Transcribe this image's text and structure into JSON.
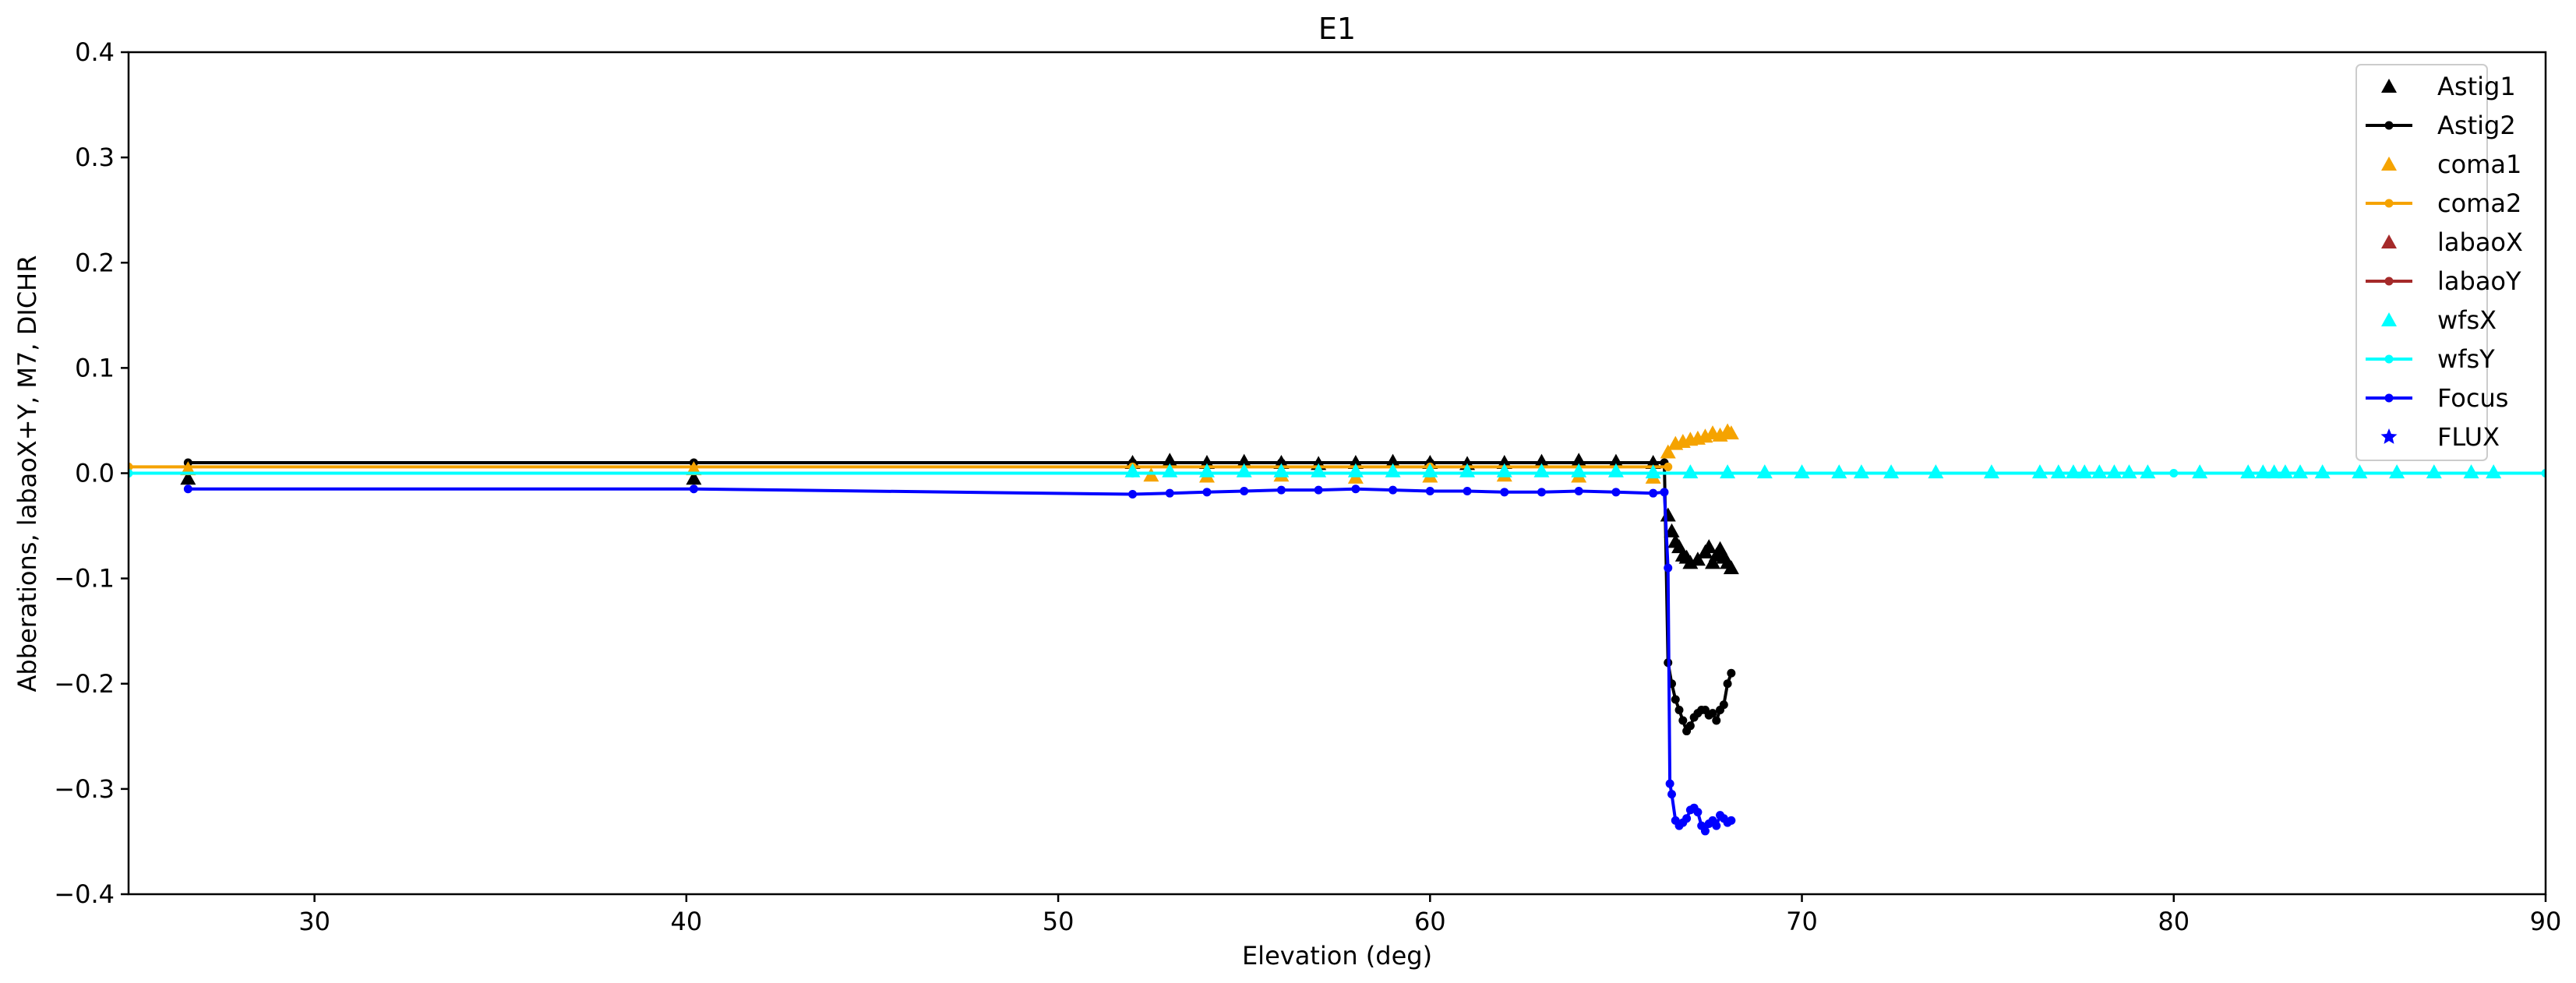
{
  "chart_data": {
    "type": "scatter",
    "title": "E1",
    "xlabel": "Elevation (deg)",
    "ylabel": "Abberations, labaoX+Y, M7, DICHR",
    "xlim": [
      25,
      90
    ],
    "ylim": [
      -0.4,
      0.4
    ],
    "xticks": [
      30,
      40,
      50,
      60,
      70,
      80,
      90
    ],
    "yticks": [
      -0.4,
      -0.3,
      -0.2,
      -0.1,
      0.0,
      0.1,
      0.2,
      0.3,
      0.4
    ],
    "ytick_labels": [
      "−0.4",
      "−0.3",
      "−0.2",
      "−0.1",
      "0.0",
      "0.1",
      "0.2",
      "0.3",
      "0.4"
    ],
    "grid": false,
    "legend_position": "top-right",
    "series": [
      {
        "name": "Astig1",
        "color": "#000000",
        "marker": "triangle",
        "line": false,
        "x": [
          26.6,
          40.2,
          52.0,
          53.0,
          54.0,
          55.0,
          56.0,
          57.0,
          58.0,
          59.0,
          60.0,
          61.0,
          62.0,
          63.0,
          64.0,
          65.0,
          66.0,
          66.4,
          66.5,
          66.6,
          66.7,
          66.8,
          66.9,
          67.0,
          67.2,
          67.4,
          67.5,
          67.6,
          67.7,
          67.8,
          67.9,
          68.0,
          68.1
        ],
        "y": [
          -0.005,
          -0.005,
          0.01,
          0.012,
          0.01,
          0.011,
          0.01,
          0.009,
          0.01,
          0.011,
          0.01,
          0.009,
          0.01,
          0.011,
          0.012,
          0.011,
          0.01,
          -0.04,
          -0.055,
          -0.065,
          -0.07,
          -0.078,
          -0.08,
          -0.085,
          -0.082,
          -0.075,
          -0.07,
          -0.085,
          -0.078,
          -0.072,
          -0.08,
          -0.085,
          -0.09
        ]
      },
      {
        "name": "Astig2",
        "color": "#000000",
        "marker": "dot",
        "line": true,
        "x": [
          26.6,
          40.2,
          52.0,
          56.0,
          60.0,
          64.0,
          66.3,
          66.4,
          66.5,
          66.6,
          66.7,
          66.8,
          66.9,
          67.0,
          67.1,
          67.2,
          67.3,
          67.4,
          67.5,
          67.6,
          67.7,
          67.8,
          67.9,
          68.0,
          68.1
        ],
        "y": [
          0.01,
          0.01,
          0.01,
          0.01,
          0.01,
          0.01,
          0.01,
          -0.18,
          -0.2,
          -0.215,
          -0.225,
          -0.235,
          -0.245,
          -0.24,
          -0.232,
          -0.228,
          -0.225,
          -0.225,
          -0.23,
          -0.228,
          -0.235,
          -0.225,
          -0.22,
          -0.2,
          -0.19
        ]
      },
      {
        "name": "coma1",
        "color": "#f5a300",
        "marker": "triangle",
        "line": false,
        "x": [
          26.6,
          40.2,
          52.5,
          54.0,
          56.0,
          58.0,
          60.0,
          62.0,
          64.0,
          66.0,
          66.4,
          66.6,
          66.8,
          67.0,
          67.2,
          67.4,
          67.6,
          67.8,
          68.0,
          68.1
        ],
        "y": [
          0.004,
          0.004,
          -0.002,
          -0.003,
          -0.002,
          -0.004,
          -0.003,
          -0.002,
          -0.003,
          -0.004,
          0.02,
          0.028,
          0.03,
          0.032,
          0.033,
          0.035,
          0.038,
          0.036,
          0.04,
          0.038
        ]
      },
      {
        "name": "coma2",
        "color": "#f5a300",
        "marker": "dot",
        "line": true,
        "x": [
          25,
          52.0,
          60.0,
          66.4
        ],
        "y": [
          0.006,
          0.006,
          0.006,
          0.006
        ]
      },
      {
        "name": "labaoX",
        "color": "#a52a2a",
        "marker": "triangle",
        "line": false,
        "x": [],
        "y": []
      },
      {
        "name": "labaoY",
        "color": "#a52a2a",
        "marker": "dot",
        "line": true,
        "x": [],
        "y": []
      },
      {
        "name": "wfsX",
        "color": "#00ffff",
        "marker": "triangle",
        "line": false,
        "x": [
          52.0,
          53.0,
          54.0,
          55.0,
          56.0,
          57.0,
          58.0,
          59.0,
          60.0,
          61.0,
          62.0,
          63.0,
          64.0,
          65.0,
          66.0,
          67.0,
          68.0,
          69.0,
          70.0,
          71.0,
          71.6,
          72.4,
          73.6,
          75.1,
          76.4,
          76.9,
          77.3,
          77.6,
          78.0,
          78.4,
          78.8,
          79.3,
          80.7,
          82.0,
          82.4,
          82.7,
          83.0,
          83.4,
          84.0,
          85.0,
          86.0,
          87.0,
          88.0,
          88.6
        ],
        "y": [
          0.002,
          0.002,
          0.002,
          0.002,
          0.002,
          0.002,
          0.002,
          0.002,
          0.002,
          0.002,
          0.002,
          0.002,
          0.002,
          0.002,
          0.001,
          0.001,
          0.001,
          0.001,
          0.001,
          0.001,
          0.001,
          0.001,
          0.001,
          0.001,
          0.001,
          0.001,
          0.001,
          0.001,
          0.001,
          0.001,
          0.001,
          0.001,
          0.001,
          0.001,
          0.001,
          0.001,
          0.001,
          0.001,
          0.001,
          0.001,
          0.001,
          0.001,
          0.001,
          0.001
        ]
      },
      {
        "name": "wfsY",
        "color": "#00ffff",
        "marker": "dot",
        "line": true,
        "x": [
          25,
          52.0,
          60.0,
          70.0,
          80.0,
          90.0
        ],
        "y": [
          0.0,
          0.0,
          0.0,
          0.0,
          0.0,
          0.0
        ]
      },
      {
        "name": "Focus",
        "color": "#0000ff",
        "marker": "dot",
        "line": true,
        "x": [
          26.6,
          40.2,
          52.0,
          53.0,
          54.0,
          55.0,
          56.0,
          57.0,
          58.0,
          59.0,
          60.0,
          61.0,
          62.0,
          63.0,
          64.0,
          65.0,
          66.0,
          66.3,
          66.4,
          66.45,
          66.5,
          66.6,
          66.7,
          66.8,
          66.9,
          67.0,
          67.1,
          67.2,
          67.3,
          67.4,
          67.5,
          67.6,
          67.7,
          67.8,
          67.9,
          68.0,
          68.1
        ],
        "y": [
          -0.015,
          -0.015,
          -0.02,
          -0.019,
          -0.018,
          -0.017,
          -0.016,
          -0.016,
          -0.015,
          -0.016,
          -0.017,
          -0.017,
          -0.018,
          -0.018,
          -0.017,
          -0.018,
          -0.019,
          -0.018,
          -0.09,
          -0.295,
          -0.305,
          -0.33,
          -0.335,
          -0.332,
          -0.328,
          -0.32,
          -0.318,
          -0.322,
          -0.335,
          -0.34,
          -0.333,
          -0.33,
          -0.335,
          -0.325,
          -0.328,
          -0.332,
          -0.33
        ]
      },
      {
        "name": "FLUX",
        "color": "#0000ff",
        "marker": "star",
        "line": false,
        "x": [],
        "y": []
      }
    ]
  }
}
